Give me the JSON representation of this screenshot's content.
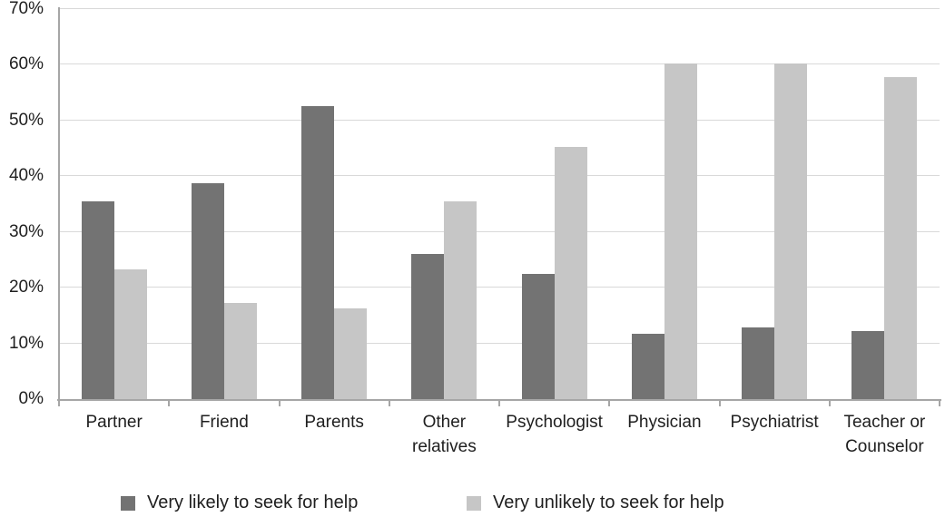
{
  "chart_data": {
    "type": "bar",
    "title": "",
    "xlabel": "",
    "ylabel": "",
    "ylim": [
      0,
      70
    ],
    "grid": true,
    "legend_position": "bottom",
    "categories": [
      "Partner",
      "Friend",
      "Parents",
      "Other relatives",
      "Psychologist",
      "Physician",
      "Psychiatrist",
      "Teacher or Counselor"
    ],
    "series": [
      {
        "name": "Very likely to seek for help",
        "color": "#737373",
        "values": [
          35.5,
          38.8,
          52.5,
          26.1,
          22.4,
          11.7,
          12.8,
          12.2
        ]
      },
      {
        "name": "Very unlikely to seek for help",
        "color": "#c6c6c6",
        "values": [
          23.2,
          17.2,
          16.3,
          35.5,
          45.3,
          60.2,
          60.2,
          57.8
        ]
      }
    ],
    "y_ticks": [
      {
        "label": "0%",
        "value": 0
      },
      {
        "label": "10%",
        "value": 10
      },
      {
        "label": "20%",
        "value": 20
      },
      {
        "label": "30%",
        "value": 30
      },
      {
        "label": "40%",
        "value": 40
      },
      {
        "label": "50%",
        "value": 50
      },
      {
        "label": "60%",
        "value": 60
      },
      {
        "label": "70%",
        "value": 70
      }
    ]
  },
  "colors": {
    "background": "#ffffff",
    "grid_line": "#d9d9d9",
    "axis_line": "#a6a6a6",
    "text": "#1f1f1f",
    "series_dark": "#737373",
    "series_light": "#c6c6c6"
  }
}
